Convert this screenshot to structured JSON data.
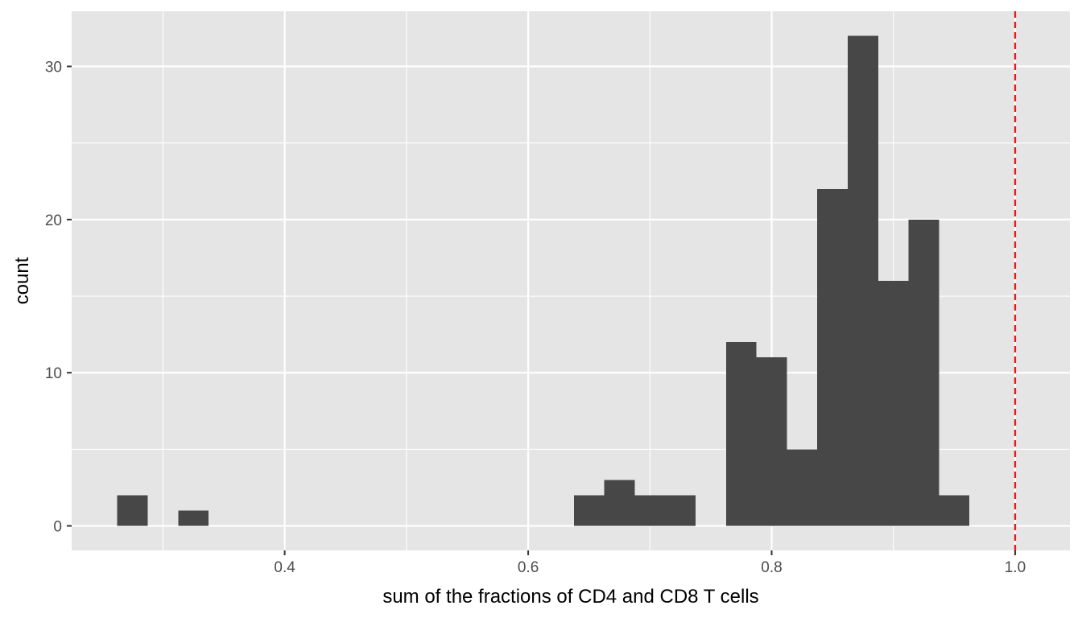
{
  "chart_data": {
    "type": "bar",
    "subtype": "histogram",
    "title": "",
    "xlabel": "sum of the fractions of CD4 and CD8 T cells",
    "ylabel": "count",
    "xlim": [
      0.225,
      1.045
    ],
    "ylim": [
      -1.6,
      33.6
    ],
    "x_ticks": [
      0.4,
      0.6,
      0.8,
      1.0
    ],
    "x_tick_labels": [
      "0.4",
      "0.6",
      "0.8",
      "1.0"
    ],
    "x_minor_ticks": [
      0.3,
      0.5,
      0.7,
      0.9
    ],
    "y_ticks": [
      0,
      10,
      20,
      30
    ],
    "y_tick_labels": [
      "0",
      "10",
      "20",
      "30"
    ],
    "y_minor_ticks": [
      5,
      15,
      25
    ],
    "bin_width": 0.025,
    "bins": [
      {
        "x0": 0.2625,
        "x1": 0.2875,
        "count": 2
      },
      {
        "x0": 0.3125,
        "x1": 0.3375,
        "count": 1
      },
      {
        "x0": 0.6375,
        "x1": 0.6625,
        "count": 2
      },
      {
        "x0": 0.6625,
        "x1": 0.6875,
        "count": 3
      },
      {
        "x0": 0.6875,
        "x1": 0.7125,
        "count": 2
      },
      {
        "x0": 0.7125,
        "x1": 0.7375,
        "count": 2
      },
      {
        "x0": 0.7625,
        "x1": 0.7875,
        "count": 12
      },
      {
        "x0": 0.7875,
        "x1": 0.8125,
        "count": 11
      },
      {
        "x0": 0.8125,
        "x1": 0.8375,
        "count": 5
      },
      {
        "x0": 0.8375,
        "x1": 0.8625,
        "count": 22
      },
      {
        "x0": 0.8625,
        "x1": 0.8875,
        "count": 32
      },
      {
        "x0": 0.8875,
        "x1": 0.9125,
        "count": 16
      },
      {
        "x0": 0.9125,
        "x1": 0.9375,
        "count": 20
      },
      {
        "x0": 0.9375,
        "x1": 0.9625,
        "count": 2
      }
    ],
    "reference_line": {
      "x": 1.0,
      "style": "dashed",
      "color": "#e41a1c"
    },
    "grid": true,
    "colors": {
      "panel_background": "#e5e5e5",
      "grid": "#ffffff",
      "bar_fill": "#474747",
      "tick_text": "#4d4d4d",
      "axis_ticks": "#333333"
    }
  }
}
